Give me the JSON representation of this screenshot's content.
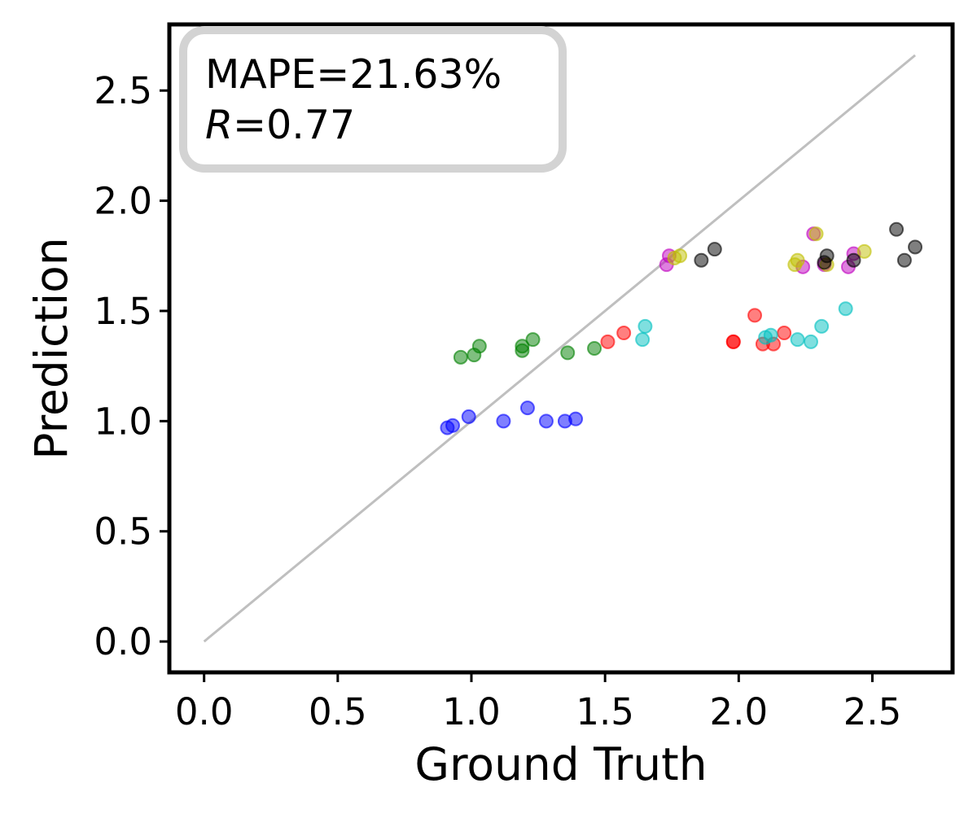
{
  "chart_data": {
    "type": "scatter",
    "title": "",
    "xlabel": "Ground Truth",
    "ylabel": "Prediction",
    "xlim": [
      -0.13,
      2.8
    ],
    "ylim": [
      -0.14,
      2.8
    ],
    "xticks": [
      0.0,
      0.5,
      1.0,
      1.5,
      2.0,
      2.5
    ],
    "yticks": [
      0.0,
      0.5,
      1.0,
      1.5,
      2.0,
      2.5
    ],
    "xtick_labels": [
      "0.0",
      "0.5",
      "1.0",
      "1.5",
      "2.0",
      "2.5"
    ],
    "ytick_labels": [
      "0.0",
      "0.5",
      "1.0",
      "1.5",
      "2.0",
      "2.5"
    ],
    "grid": false,
    "reference_line": {
      "x": [
        0.0,
        2.66
      ],
      "y": [
        0.0,
        2.66
      ],
      "color": "#bfbfbf"
    },
    "annotation": {
      "mape_text": "MAPE=21.63%",
      "r_label": "R",
      "r_value_text": "=0.77",
      "placement": "top-left"
    },
    "series": [
      {
        "name": "blue",
        "color": "#0000ff",
        "points": [
          [
            0.91,
            0.97
          ],
          [
            0.93,
            0.98
          ],
          [
            0.99,
            1.02
          ],
          [
            1.12,
            1.0
          ],
          [
            1.21,
            1.06
          ],
          [
            1.28,
            1.0
          ],
          [
            1.35,
            1.0
          ],
          [
            1.39,
            1.01
          ]
        ]
      },
      {
        "name": "green",
        "color": "#008000",
        "points": [
          [
            0.96,
            1.29
          ],
          [
            1.01,
            1.3
          ],
          [
            1.03,
            1.34
          ],
          [
            1.19,
            1.34
          ],
          [
            1.19,
            1.32
          ],
          [
            1.23,
            1.37
          ],
          [
            1.36,
            1.31
          ],
          [
            1.46,
            1.33
          ]
        ]
      },
      {
        "name": "red",
        "color": "#ff0000",
        "points": [
          [
            1.51,
            1.36
          ],
          [
            1.57,
            1.4
          ],
          [
            1.98,
            1.36
          ],
          [
            1.98,
            1.36
          ],
          [
            2.06,
            1.48
          ],
          [
            2.09,
            1.35
          ],
          [
            2.13,
            1.35
          ],
          [
            2.17,
            1.4
          ]
        ]
      },
      {
        "name": "cyan",
        "color": "#00bfbf",
        "points": [
          [
            1.64,
            1.37
          ],
          [
            1.65,
            1.43
          ],
          [
            2.1,
            1.38
          ],
          [
            2.12,
            1.39
          ],
          [
            2.22,
            1.37
          ],
          [
            2.27,
            1.36
          ],
          [
            2.31,
            1.43
          ],
          [
            2.4,
            1.51
          ]
        ]
      },
      {
        "name": "magenta",
        "color": "#bf00bf",
        "points": [
          [
            1.74,
            1.75
          ],
          [
            1.73,
            1.71
          ],
          [
            2.24,
            1.7
          ],
          [
            2.28,
            1.85
          ],
          [
            2.32,
            1.71
          ],
          [
            2.41,
            1.7
          ],
          [
            2.43,
            1.76
          ]
        ]
      },
      {
        "name": "yellow",
        "color": "#bfbf00",
        "points": [
          [
            1.76,
            1.74
          ],
          [
            1.78,
            1.75
          ],
          [
            2.21,
            1.71
          ],
          [
            2.22,
            1.73
          ],
          [
            2.29,
            1.85
          ],
          [
            2.33,
            1.71
          ],
          [
            2.47,
            1.77
          ]
        ]
      },
      {
        "name": "black",
        "color": "#000000",
        "points": [
          [
            1.86,
            1.73
          ],
          [
            1.91,
            1.78
          ],
          [
            2.32,
            1.72
          ],
          [
            2.33,
            1.75
          ],
          [
            2.43,
            1.73
          ],
          [
            2.59,
            1.87
          ],
          [
            2.62,
            1.73
          ],
          [
            2.66,
            1.79
          ]
        ]
      }
    ]
  }
}
